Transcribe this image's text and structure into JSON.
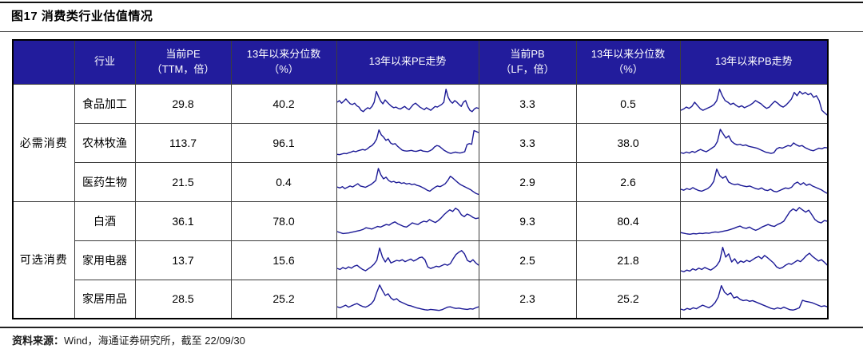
{
  "title": "图17 消费类行业估值情况",
  "colors": {
    "header_bg": "#221c9c",
    "spark_line": "#1c1a96",
    "border": "#3d3d3d"
  },
  "table": {
    "headers": {
      "group": "",
      "industry": "行业",
      "pe": {
        "line1": "当前PE",
        "line2": "（TTM，倍）"
      },
      "pe_pct": {
        "line1": "13年以来分位数",
        "line2": "（%）"
      },
      "pe_trend": "13年以来PE走势",
      "pb": {
        "line1": "当前PB",
        "line2": "（LF，倍）"
      },
      "pb_pct": {
        "line1": "13年以来分位数",
        "line2": "（%）"
      },
      "pb_trend": "13年以来PB走势"
    },
    "groups": [
      {
        "name": "必需消费",
        "rows": [
          {
            "industry": "食品加工",
            "pe": "29.8",
            "pe_pct": "40.2",
            "pb": "3.3",
            "pb_pct": "0.5"
          },
          {
            "industry": "农林牧渔",
            "pe": "113.7",
            "pe_pct": "96.1",
            "pb": "3.3",
            "pb_pct": "38.0"
          },
          {
            "industry": "医药生物",
            "pe": "21.5",
            "pe_pct": "0.4",
            "pb": "2.9",
            "pb_pct": "2.6"
          }
        ]
      },
      {
        "name": "可选消费",
        "rows": [
          {
            "industry": "白酒",
            "pe": "36.1",
            "pe_pct": "78.0",
            "pb": "9.3",
            "pb_pct": "80.4"
          },
          {
            "industry": "家用电器",
            "pe": "13.7",
            "pe_pct": "15.6",
            "pb": "2.5",
            "pb_pct": "21.8"
          },
          {
            "industry": "家居用品",
            "pe": "28.5",
            "pe_pct": "25.2",
            "pb": "2.3",
            "pb_pct": "25.2"
          }
        ]
      }
    ]
  },
  "footer": {
    "label": "资料来源：",
    "text": "Wind，海通证券研究所，截至 22/09/30"
  },
  "chart_data": {
    "type": "line",
    "title": "13年以来PE/PB走势 sparklines",
    "x_range": "2013 — 2022/09/30",
    "value_scale": "normalized 0-100 (sparklines have no visible axes in source)",
    "grid": false,
    "legend": false,
    "series": [
      {
        "name": "食品加工 PE走势",
        "values": [
          55,
          60,
          52,
          58,
          65,
          57,
          50,
          48,
          52,
          44,
          40,
          30,
          26,
          33,
          38,
          35,
          42,
          55,
          88,
          72,
          58,
          50,
          62,
          55,
          48,
          42,
          38,
          40,
          36,
          34,
          38,
          42,
          36,
          32,
          40,
          48,
          52,
          46,
          40,
          36,
          32,
          38,
          34,
          30,
          36,
          42,
          40,
          44,
          48,
          55,
          95,
          70,
          58,
          52,
          60,
          55,
          48,
          42,
          55,
          60,
          42,
          30,
          26,
          34,
          38,
          36
        ]
      },
      {
        "name": "农林牧渔 PE走势",
        "values": [
          15,
          14,
          16,
          18,
          17,
          20,
          22,
          25,
          23,
          26,
          28,
          30,
          28,
          32,
          38,
          42,
          50,
          62,
          90,
          75,
          68,
          58,
          62,
          50,
          46,
          48,
          40,
          34,
          28,
          26,
          25,
          26,
          27,
          25,
          24,
          26,
          28,
          25,
          24,
          23,
          26,
          30,
          38,
          42,
          40,
          34,
          28,
          24,
          20,
          18,
          20,
          22,
          20,
          19,
          21,
          23,
          45,
          48,
          46,
          88,
          85,
          82
        ]
      },
      {
        "name": "医药生物 PE走势",
        "values": [
          35,
          32,
          36,
          30,
          34,
          38,
          35,
          40,
          45,
          38,
          36,
          34,
          38,
          42,
          48,
          55,
          92,
          72,
          60,
          65,
          55,
          50,
          52,
          48,
          50,
          46,
          48,
          44,
          46,
          42,
          44,
          40,
          38,
          34,
          30,
          25,
          22,
          28,
          34,
          38,
          36,
          40,
          45,
          55,
          68,
          62,
          55,
          48,
          42,
          38,
          34,
          30,
          26,
          20,
          15,
          12
        ]
      },
      {
        "name": "白酒 PE走势",
        "values": [
          18,
          15,
          12,
          13,
          14,
          16,
          18,
          20,
          22,
          25,
          30,
          28,
          26,
          30,
          34,
          32,
          36,
          40,
          38,
          44,
          48,
          42,
          38,
          34,
          32,
          38,
          45,
          42,
          40,
          46,
          50,
          48,
          55,
          50,
          46,
          52,
          60,
          70,
          78,
          85,
          80,
          90,
          84,
          70,
          64,
          72,
          68,
          62,
          58,
          60
        ]
      },
      {
        "name": "家用电器 PE走势",
        "values": [
          25,
          22,
          28,
          24,
          30,
          26,
          32,
          35,
          28,
          22,
          18,
          24,
          30,
          38,
          50,
          88,
          60,
          45,
          58,
          42,
          46,
          50,
          48,
          52,
          46,
          50,
          54,
          48,
          52,
          58,
          60,
          52,
          30,
          25,
          28,
          32,
          30,
          34,
          38,
          35,
          40,
          55,
          68,
          75,
          80,
          70,
          50,
          45,
          52,
          42,
          35
        ]
      },
      {
        "name": "家居用品 PE走势",
        "values": [
          25,
          22,
          26,
          30,
          24,
          28,
          32,
          35,
          30,
          26,
          24,
          28,
          34,
          45,
          70,
          92,
          75,
          60,
          65,
          52,
          46,
          50,
          42,
          38,
          34,
          30,
          28,
          25,
          22,
          20,
          18,
          16,
          15,
          17,
          16,
          15,
          14,
          16,
          20,
          24,
          25,
          22,
          20,
          21,
          19,
          18,
          17,
          19,
          18,
          22,
          25
        ]
      },
      {
        "name": "食品加工 PB走势",
        "values": [
          30,
          34,
          40,
          36,
          42,
          55,
          45,
          35,
          30,
          34,
          38,
          42,
          48,
          60,
          95,
          75,
          60,
          55,
          48,
          52,
          45,
          40,
          44,
          38,
          42,
          46,
          52,
          60,
          55,
          50,
          42,
          36,
          40,
          50,
          58,
          52,
          44,
          40,
          46,
          55,
          65,
          85,
          75,
          88,
          80,
          85,
          78,
          82,
          70,
          75,
          60,
          30,
          22,
          15
        ]
      },
      {
        "name": "农林牧渔 PB走势",
        "values": [
          20,
          18,
          22,
          19,
          24,
          21,
          26,
          30,
          26,
          23,
          28,
          34,
          40,
          55,
          92,
          78,
          65,
          72,
          55,
          48,
          44,
          46,
          42,
          44,
          40,
          38,
          36,
          34,
          30,
          26,
          22,
          20,
          18,
          20,
          32,
          36,
          34,
          38,
          42,
          40,
          50,
          44,
          40,
          42,
          36,
          32,
          28,
          26,
          30,
          34,
          32,
          36,
          35
        ]
      },
      {
        "name": "医药生物 PB走势",
        "values": [
          28,
          25,
          30,
          27,
          33,
          28,
          24,
          22,
          26,
          30,
          38,
          52,
          90,
          70,
          62,
          68,
          50,
          45,
          42,
          44,
          40,
          38,
          36,
          38,
          34,
          30,
          28,
          32,
          26,
          24,
          28,
          22,
          20,
          24,
          28,
          32,
          30,
          34,
          45,
          50,
          42,
          48,
          40,
          44,
          38,
          34,
          30,
          26,
          20,
          15
        ]
      },
      {
        "name": "白酒 PB走势",
        "values": [
          15,
          13,
          11,
          10,
          12,
          11,
          13,
          12,
          14,
          13,
          15,
          17,
          16,
          18,
          20,
          22,
          25,
          28,
          32,
          35,
          30,
          28,
          32,
          26,
          22,
          26,
          32,
          36,
          40,
          36,
          34,
          40,
          44,
          50,
          65,
          80,
          88,
          82,
          92,
          85,
          78,
          84,
          70,
          55,
          48,
          45,
          52,
          50
        ]
      },
      {
        "name": "家用电器 PB走势",
        "values": [
          18,
          15,
          20,
          17,
          24,
          20,
          26,
          22,
          28,
          24,
          20,
          26,
          34,
          48,
          90,
          60,
          70,
          45,
          55,
          40,
          48,
          44,
          50,
          46,
          52,
          58,
          62,
          55,
          65,
          58,
          50,
          42,
          30,
          25,
          28,
          35,
          40,
          38,
          44,
          50,
          46,
          55,
          65,
          72,
          62,
          55,
          48,
          52,
          44,
          35
        ]
      },
      {
        "name": "家居用品 PB走势",
        "values": [
          18,
          15,
          20,
          17,
          22,
          19,
          25,
          30,
          26,
          22,
          28,
          38,
          55,
          90,
          70,
          62,
          68,
          52,
          56,
          48,
          44,
          46,
          42,
          44,
          40,
          36,
          32,
          28,
          24,
          20,
          18,
          22,
          19,
          24,
          20,
          16,
          15,
          18,
          22,
          45,
          42,
          40,
          38,
          34,
          30,
          26,
          28,
          25
        ]
      }
    ]
  }
}
